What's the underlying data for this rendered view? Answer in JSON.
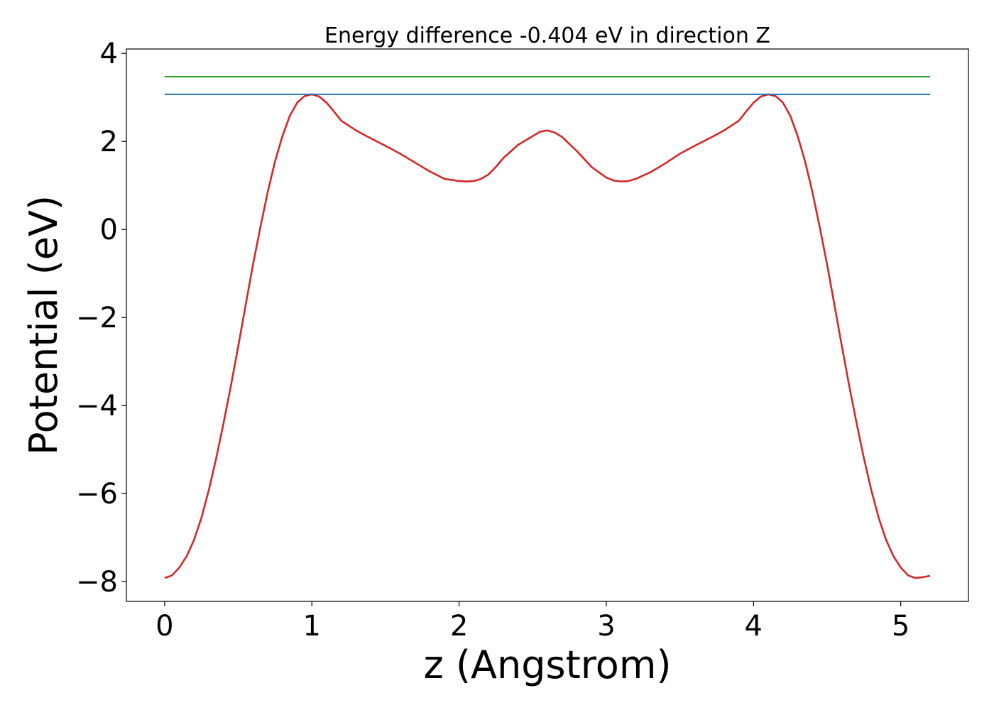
{
  "chart_data": {
    "type": "line",
    "title": "Energy difference -0.404 eV in direction Z",
    "xlabel": "z (Angstrom)",
    "ylabel": "Potential (eV)",
    "xlim": [
      -0.26,
      5.46
    ],
    "ylim": [
      -8.45,
      4.1
    ],
    "x_ticks": [
      0,
      1,
      2,
      3,
      4,
      5
    ],
    "y_ticks": [
      -8,
      -6,
      -4,
      -2,
      0,
      2,
      4
    ],
    "x_tick_labels": [
      "0",
      "1",
      "2",
      "3",
      "4",
      "5"
    ],
    "y_tick_labels": [
      "−8",
      "−6",
      "−4",
      "−2",
      "0",
      "2",
      "4"
    ],
    "grid": false,
    "legend": "none",
    "series": [
      {
        "color": "#d62728",
        "x": [
          0.0,
          0.05,
          0.1,
          0.15,
          0.2,
          0.25,
          0.3,
          0.35,
          0.4,
          0.45,
          0.5,
          0.55,
          0.6,
          0.65,
          0.7,
          0.75,
          0.8,
          0.85,
          0.9,
          0.95,
          1.0,
          1.05,
          1.1,
          1.15,
          1.2,
          1.3,
          1.4,
          1.5,
          1.6,
          1.7,
          1.8,
          1.9,
          2.0,
          2.05,
          2.1,
          2.15,
          2.2,
          2.25,
          2.3,
          2.4,
          2.5,
          2.55,
          2.6,
          2.65,
          2.7,
          2.8,
          2.9,
          3.0,
          3.05,
          3.1,
          3.15,
          3.2,
          3.3,
          3.4,
          3.5,
          3.6,
          3.7,
          3.8,
          3.9,
          3.95,
          4.0,
          4.05,
          4.1,
          4.15,
          4.2,
          4.25,
          4.3,
          4.35,
          4.4,
          4.45,
          4.5,
          4.55,
          4.6,
          4.65,
          4.7,
          4.75,
          4.8,
          4.85,
          4.9,
          4.95,
          5.0,
          5.05,
          5.1,
          5.15,
          5.2
        ],
        "y": [
          -7.92,
          -7.86,
          -7.68,
          -7.42,
          -7.05,
          -6.55,
          -5.92,
          -5.2,
          -4.4,
          -3.55,
          -2.65,
          -1.72,
          -0.8,
          0.05,
          0.85,
          1.55,
          2.12,
          2.58,
          2.88,
          3.03,
          3.07,
          3.02,
          2.88,
          2.68,
          2.47,
          2.25,
          2.07,
          1.9,
          1.72,
          1.52,
          1.32,
          1.15,
          1.1,
          1.09,
          1.1,
          1.15,
          1.25,
          1.42,
          1.62,
          1.92,
          2.12,
          2.22,
          2.25,
          2.2,
          2.1,
          1.78,
          1.42,
          1.18,
          1.11,
          1.09,
          1.1,
          1.15,
          1.3,
          1.5,
          1.72,
          1.9,
          2.07,
          2.25,
          2.47,
          2.68,
          2.88,
          3.02,
          3.07,
          3.03,
          2.88,
          2.58,
          2.12,
          1.55,
          0.85,
          0.05,
          -0.8,
          -1.72,
          -2.65,
          -3.55,
          -4.4,
          -5.2,
          -5.92,
          -6.55,
          -7.05,
          -7.42,
          -7.68,
          -7.86,
          -7.92,
          -7.9,
          -7.87
        ]
      },
      {
        "color": "#1f77b4",
        "x": [
          0.0,
          5.2
        ],
        "y": [
          3.07,
          3.07
        ]
      },
      {
        "color": "#2ca02c",
        "x": [
          0.0,
          5.2
        ],
        "y": [
          3.47,
          3.47
        ]
      }
    ]
  }
}
